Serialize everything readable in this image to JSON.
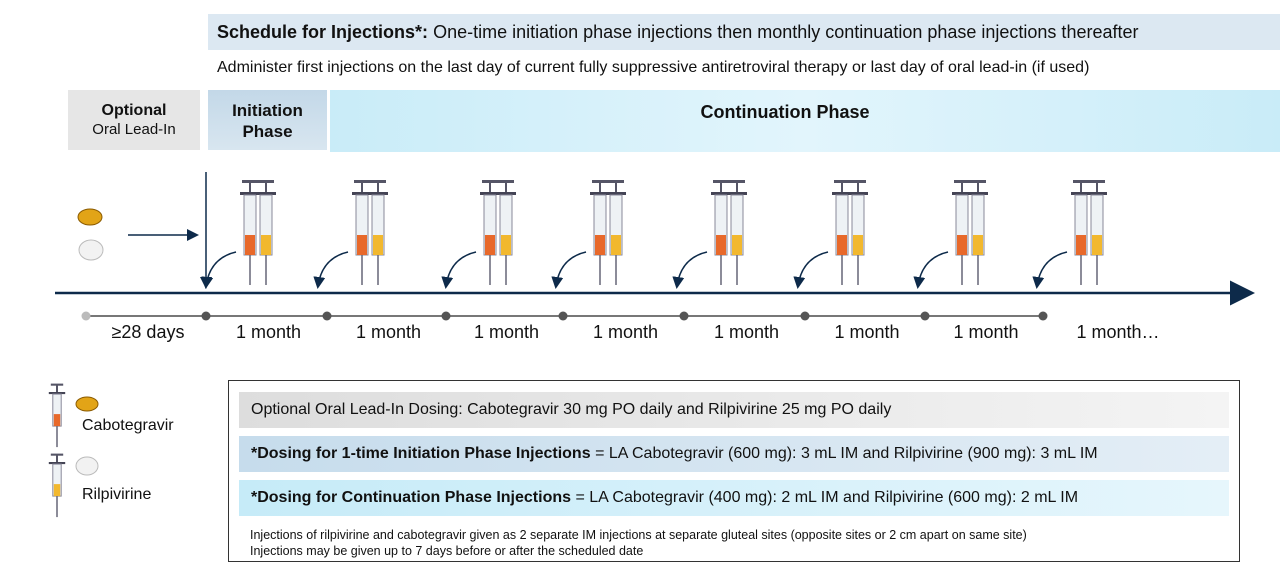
{
  "header": {
    "title_bold": "Schedule for Injections*:",
    "title_rest": "One-time initiation phase injections then monthly continuation phase injections thereafter",
    "subtitle": "Administer first injections on the last day of current fully suppressive antiretroviral therapy or last day of oral lead-in (if used)"
  },
  "phases": [
    {
      "label": [
        "Optional",
        "Oral Lead-In"
      ]
    },
    {
      "label": [
        "Initiation",
        "Phase"
      ]
    },
    {
      "label": [
        "Continuation Phase"
      ]
    }
  ],
  "timeline": {
    "intervals": [
      "≥28 days",
      "1 month",
      "1 month",
      "1 month",
      "1 month",
      "1 month",
      "1 month",
      "1 month",
      "1 month…"
    ]
  },
  "legend": [
    "Cabotegravir",
    "Rilpivirine"
  ],
  "dosing": {
    "oral": "Optional Oral Lead-In Dosing: Cabotegravir 30 mg PO daily and Rilpivirine 25 mg PO daily",
    "initiation_bold": "*Dosing for 1-time Initiation Phase Injections",
    "initiation_rest": "= LA Cabotegravir (600 mg): 3 mL IM and Rilpivirine (900 mg): 3 mL IM",
    "continuation_bold": "*Dosing for Continuation Phase Injections",
    "continuation_rest": "= LA Cabotegravir (400 mg): 2 mL IM and Rilpivirine (600 mg): 2 mL IM",
    "notes": [
      "Injections of rilpivirine and cabotegravir given as 2 separate IM injections at separate gluteal sites (opposite sites or 2 cm apart on same site)",
      "Injections may be given up to 7 days before or after the scheduled date"
    ]
  }
}
